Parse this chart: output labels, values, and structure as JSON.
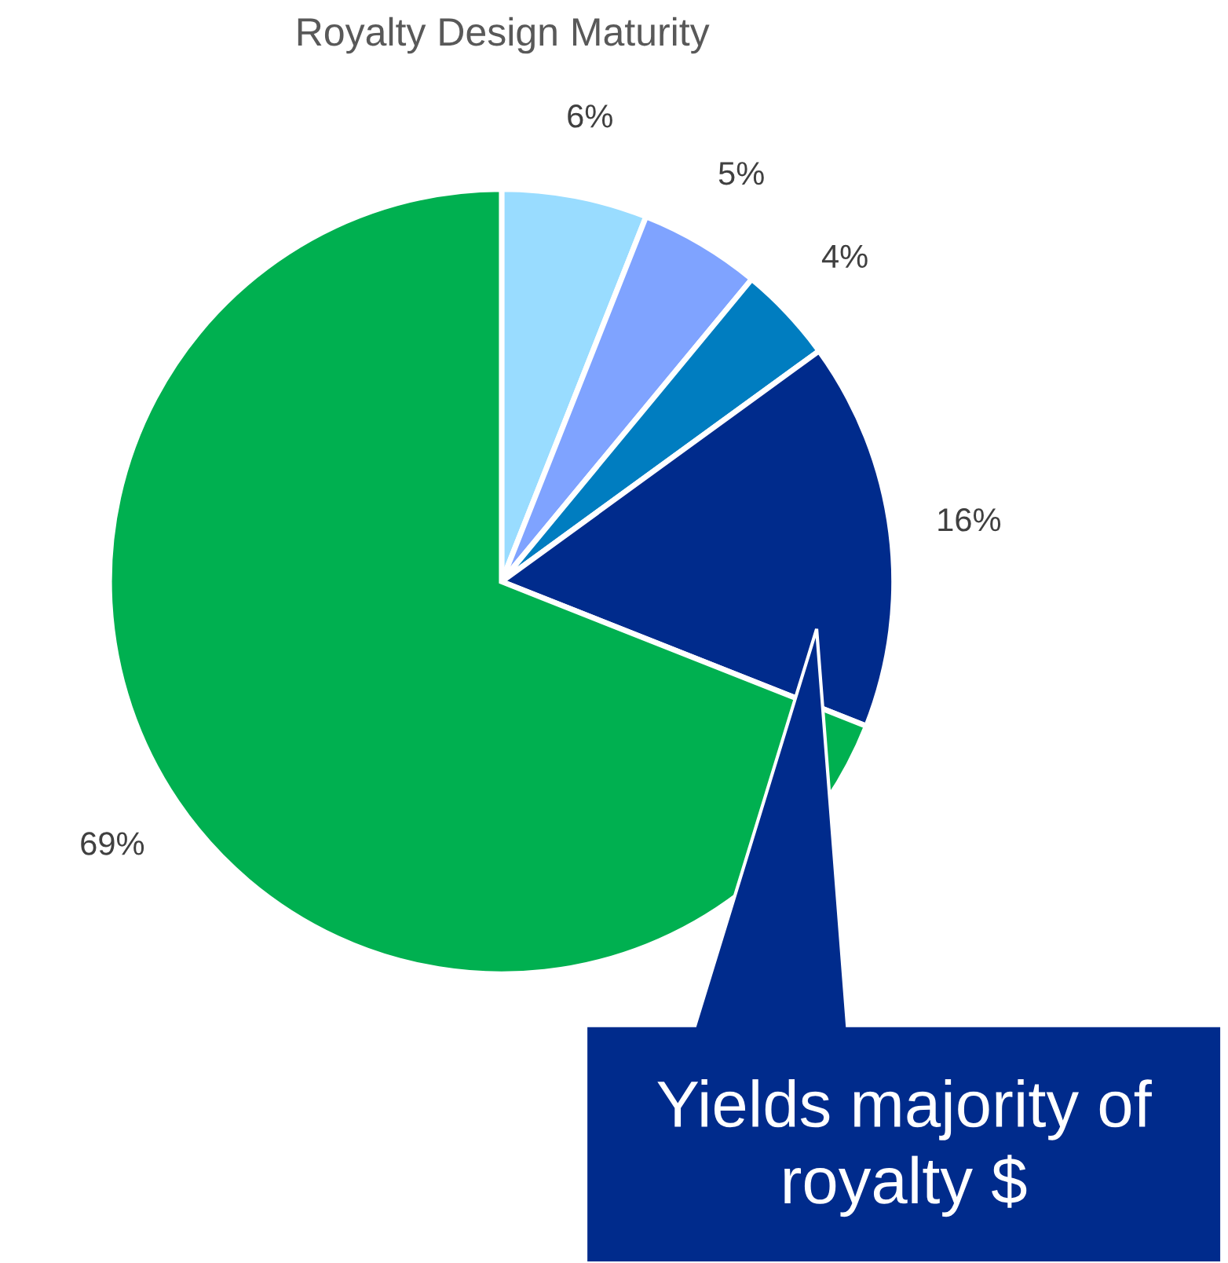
{
  "chart_data": {
    "type": "pie",
    "title": "Royalty Design Maturity",
    "categories": [
      null,
      null,
      null,
      null,
      null
    ],
    "values": [
      6,
      5,
      4,
      16,
      69
    ],
    "value_labels": [
      "6%",
      "5%",
      "4%",
      "16%",
      "69%"
    ],
    "colors": [
      "#99dcff",
      "#7fa3ff",
      "#007dc0",
      "#002b8c",
      "#00b050"
    ],
    "annotations": [
      "Yields majority of royalty $"
    ]
  }
}
